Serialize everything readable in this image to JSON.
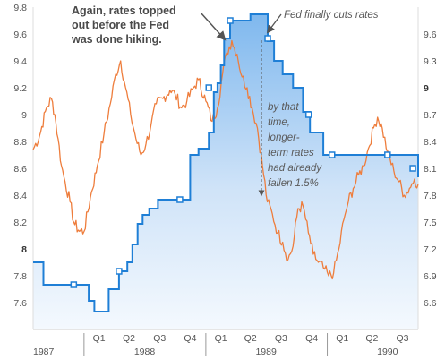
{
  "chart_data": {
    "type": "line",
    "title": "",
    "xlabel": "",
    "x_range": [
      "1987-08-01",
      "1990-10-01"
    ],
    "x_quarter_labels": [
      "Q1",
      "Q2",
      "Q3",
      "Q4",
      "Q1",
      "Q2",
      "Q3",
      "Q4",
      "Q1",
      "Q2",
      "Q3"
    ],
    "x_year_labels": [
      "1987",
      "1988",
      "1989",
      "1990"
    ],
    "left_axis": {
      "ylabel": "",
      "ylim": [
        7.4,
        9.8
      ],
      "ticks": [
        "7.6",
        "7.8",
        "8",
        "8.2",
        "8.4",
        "8.6",
        "8.8",
        "9",
        "9.2",
        "9.4",
        "9.6",
        "9.8"
      ],
      "bold_tick": "8"
    },
    "right_axis": {
      "ylabel": "",
      "ylim": [
        6.3,
        9.9
      ],
      "ticks": [
        "6.6",
        "6.9",
        "7.2",
        "7.5",
        "7.8",
        "8.1",
        "8.4",
        "8.7",
        "9",
        "9.3",
        "9.6"
      ],
      "bold_tick": "9"
    },
    "grid": false,
    "series": [
      {
        "axis": "left",
        "color": "#ee7d3c",
        "style": "daily-line",
        "points": [
          [
            "1987-08-01",
            8.74
          ],
          [
            "1987-08-20",
            8.84
          ],
          [
            "1987-09-10",
            9.05
          ],
          [
            "1987-09-25",
            9.12
          ],
          [
            "1987-10-05",
            9.0
          ],
          [
            "1987-10-15",
            8.82
          ],
          [
            "1987-10-25",
            8.62
          ],
          [
            "1987-11-05",
            8.5
          ],
          [
            "1987-11-20",
            8.35
          ],
          [
            "1987-12-01",
            8.2
          ],
          [
            "1987-12-15",
            8.14
          ],
          [
            "1988-01-01",
            8.13
          ],
          [
            "1988-01-20",
            8.38
          ],
          [
            "1988-02-10",
            8.62
          ],
          [
            "1988-03-01",
            8.86
          ],
          [
            "1988-03-20",
            9.08
          ],
          [
            "1988-04-05",
            9.3
          ],
          [
            "1988-04-20",
            9.4
          ],
          [
            "1988-05-05",
            9.2
          ],
          [
            "1988-05-20",
            9.0
          ],
          [
            "1988-06-05",
            8.82
          ],
          [
            "1988-06-20",
            8.7
          ],
          [
            "1988-07-05",
            8.78
          ],
          [
            "1988-07-20",
            8.92
          ],
          [
            "1988-08-05",
            9.08
          ],
          [
            "1988-08-25",
            9.12
          ],
          [
            "1988-09-15",
            9.18
          ],
          [
            "1988-10-01",
            9.15
          ],
          [
            "1988-10-20",
            9.05
          ],
          [
            "1988-11-05",
            9.1
          ],
          [
            "1988-11-25",
            9.2
          ],
          [
            "1988-12-10",
            9.26
          ],
          [
            "1989-01-01",
            9.1
          ],
          [
            "1989-01-20",
            8.95
          ],
          [
            "1989-02-05",
            9.05
          ],
          [
            "1989-02-20",
            9.3
          ],
          [
            "1989-03-05",
            9.46
          ],
          [
            "1989-03-20",
            9.55
          ],
          [
            "1989-04-05",
            9.45
          ],
          [
            "1989-04-20",
            9.28
          ],
          [
            "1989-05-05",
            9.2
          ],
          [
            "1989-05-20",
            9.05
          ],
          [
            "1989-06-05",
            8.9
          ],
          [
            "1989-06-20",
            8.62
          ],
          [
            "1989-07-05",
            8.35
          ],
          [
            "1989-07-20",
            8.26
          ],
          [
            "1989-08-05",
            8.12
          ],
          [
            "1989-08-20",
            8.05
          ],
          [
            "1989-09-05",
            7.92
          ],
          [
            "1989-09-20",
            8.02
          ],
          [
            "1989-10-05",
            8.3
          ],
          [
            "1989-10-20",
            8.32
          ],
          [
            "1989-11-05",
            8.12
          ],
          [
            "1989-11-20",
            7.96
          ],
          [
            "1989-12-05",
            7.9
          ],
          [
            "1989-12-20",
            7.86
          ],
          [
            "1990-01-05",
            7.8
          ],
          [
            "1990-01-20",
            7.82
          ],
          [
            "1990-02-05",
            8.0
          ],
          [
            "1990-02-20",
            8.22
          ],
          [
            "1990-03-05",
            8.35
          ],
          [
            "1990-03-20",
            8.45
          ],
          [
            "1990-04-05",
            8.55
          ],
          [
            "1990-04-20",
            8.62
          ],
          [
            "1990-05-05",
            8.75
          ],
          [
            "1990-05-20",
            8.9
          ],
          [
            "1990-06-01",
            8.98
          ],
          [
            "1990-06-15",
            8.9
          ],
          [
            "1990-07-01",
            8.72
          ],
          [
            "1990-07-20",
            8.58
          ],
          [
            "1990-08-05",
            8.5
          ],
          [
            "1990-08-20",
            8.4
          ],
          [
            "1990-09-05",
            8.45
          ],
          [
            "1990-09-20",
            8.52
          ],
          [
            "1990-10-01",
            8.48
          ]
        ]
      },
      {
        "axis": "right",
        "color": "#1f7fd6",
        "style": "step-area",
        "points": [
          [
            "1987-08-01",
            7.05
          ],
          [
            "1987-09-01",
            6.8
          ],
          [
            "1987-12-15",
            6.8
          ],
          [
            "1988-01-15",
            6.62
          ],
          [
            "1988-02-01",
            6.5
          ],
          [
            "1988-03-01",
            6.5
          ],
          [
            "1988-03-15",
            6.75
          ],
          [
            "1988-04-15",
            6.95
          ],
          [
            "1988-05-10",
            7.05
          ],
          [
            "1988-05-25",
            7.25
          ],
          [
            "1988-06-10",
            7.48
          ],
          [
            "1988-06-25",
            7.58
          ],
          [
            "1988-07-15",
            7.65
          ],
          [
            "1988-08-10",
            7.75
          ],
          [
            "1988-10-15",
            7.75
          ],
          [
            "1988-11-15",
            8.25
          ],
          [
            "1988-12-10",
            8.32
          ],
          [
            "1989-01-10",
            8.5
          ],
          [
            "1989-01-25",
            8.95
          ],
          [
            "1989-02-05",
            9.05
          ],
          [
            "1989-02-15",
            9.25
          ],
          [
            "1989-02-25",
            9.55
          ],
          [
            "1989-03-15",
            9.75
          ],
          [
            "1989-04-10",
            9.75
          ],
          [
            "1989-05-15",
            9.82
          ],
          [
            "1989-06-06",
            9.82
          ],
          [
            "1989-07-06",
            9.52
          ],
          [
            "1989-07-25",
            9.3
          ],
          [
            "1989-08-20",
            9.15
          ],
          [
            "1989-09-20",
            9.0
          ],
          [
            "1989-10-20",
            8.73
          ],
          [
            "1989-11-10",
            8.5
          ],
          [
            "1989-12-20",
            8.25
          ],
          [
            "1990-08-01",
            8.25
          ],
          [
            "1990-10-01",
            8.0
          ]
        ],
        "markers": [
          [
            "1987-12-01",
            6.8
          ],
          [
            "1988-04-15",
            6.95
          ],
          [
            "1988-10-15",
            7.75
          ],
          [
            "1989-01-10",
            9.0
          ],
          [
            "1989-03-15",
            9.75
          ],
          [
            "1989-07-06",
            9.55
          ],
          [
            "1989-11-06",
            8.7
          ],
          [
            "1990-01-15",
            8.25
          ],
          [
            "1990-07-01",
            8.25
          ],
          [
            "1990-09-15",
            8.1
          ]
        ]
      }
    ],
    "annotations": {
      "top_left": [
        "Again, rates topped",
        "out before the Fed",
        "was done hiking."
      ],
      "top_right": "Fed finally cuts rates",
      "middle": [
        "by that",
        "time,",
        "longer-",
        "term rates",
        "had already",
        "fallen 1.5%"
      ]
    }
  }
}
